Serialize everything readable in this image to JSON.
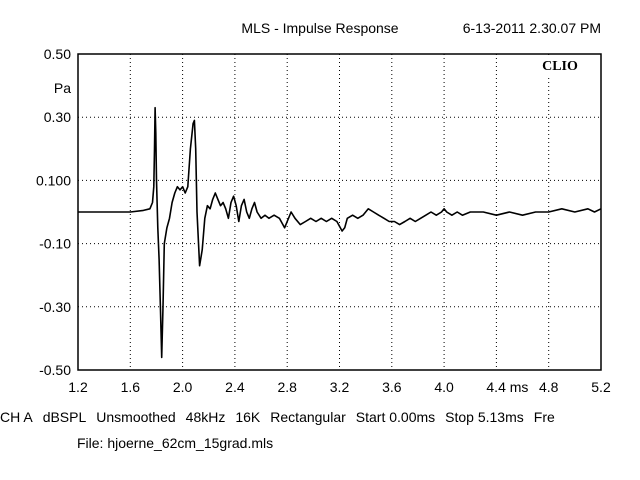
{
  "header": {
    "title": "MLS - Impulse Response",
    "timestamp": "6-13-2011 2.30.07 PM"
  },
  "brand": "CLIO",
  "footer": {
    "settings": [
      "CH A",
      "dBSPL",
      "Unsmoothed",
      "48kHz",
      "16K",
      "Rectangular",
      "Start 0.00ms",
      "Stop 5.13ms",
      "Fre"
    ],
    "file": "File: hjoerne_62cm_15grad.mls"
  },
  "chart_data": {
    "type": "line",
    "title": "MLS - Impulse Response",
    "ylabel": "Pa",
    "xlim": [
      1.2,
      5.2
    ],
    "ylim": [
      -0.5,
      0.5
    ],
    "grid": true,
    "x_ticks": [
      {
        "value": 1.2,
        "label": "1.2"
      },
      {
        "value": 1.6,
        "label": "1.6"
      },
      {
        "value": 2.0,
        "label": "2.0"
      },
      {
        "value": 2.4,
        "label": "2.4"
      },
      {
        "value": 2.8,
        "label": "2.8"
      },
      {
        "value": 3.2,
        "label": "3.2"
      },
      {
        "value": 3.6,
        "label": "3.6"
      },
      {
        "value": 4.0,
        "label": "4.0"
      },
      {
        "value": 4.4,
        "label": "4.4 ms"
      },
      {
        "value": 4.8,
        "label": "4.8"
      },
      {
        "value": 5.2,
        "label": "5.2"
      }
    ],
    "y_ticks": [
      {
        "value": 0.5,
        "label": "0.50"
      },
      {
        "value": 0.3,
        "label": "0.30"
      },
      {
        "value": 0.1,
        "label": "0.100"
      },
      {
        "value": -0.1,
        "label": "-0.10"
      },
      {
        "value": -0.3,
        "label": "-0.30"
      },
      {
        "value": -0.5,
        "label": "-0.50"
      }
    ],
    "series": [
      {
        "color": "#000000",
        "points": [
          [
            1.2,
            0.0
          ],
          [
            1.3,
            0.0
          ],
          [
            1.4,
            0.0
          ],
          [
            1.5,
            0.0
          ],
          [
            1.6,
            0.0
          ],
          [
            1.7,
            0.005
          ],
          [
            1.75,
            0.01
          ],
          [
            1.77,
            0.03
          ],
          [
            1.78,
            0.08
          ],
          [
            1.785,
            0.2
          ],
          [
            1.79,
            0.33
          ],
          [
            1.795,
            0.25
          ],
          [
            1.8,
            0.1
          ],
          [
            1.81,
            -0.05
          ],
          [
            1.82,
            -0.15
          ],
          [
            1.83,
            -0.3
          ],
          [
            1.84,
            -0.46
          ],
          [
            1.85,
            -0.3
          ],
          [
            1.86,
            -0.1
          ],
          [
            1.88,
            -0.05
          ],
          [
            1.9,
            -0.02
          ],
          [
            1.92,
            0.03
          ],
          [
            1.94,
            0.06
          ],
          [
            1.96,
            0.08
          ],
          [
            1.98,
            0.07
          ],
          [
            2.0,
            0.08
          ],
          [
            2.02,
            0.06
          ],
          [
            2.04,
            0.08
          ],
          [
            2.06,
            0.2
          ],
          [
            2.08,
            0.28
          ],
          [
            2.09,
            0.29
          ],
          [
            2.1,
            0.2
          ],
          [
            2.11,
            0.0
          ],
          [
            2.13,
            -0.17
          ],
          [
            2.15,
            -0.12
          ],
          [
            2.17,
            -0.02
          ],
          [
            2.19,
            0.02
          ],
          [
            2.21,
            0.01
          ],
          [
            2.23,
            0.04
          ],
          [
            2.25,
            0.06
          ],
          [
            2.27,
            0.04
          ],
          [
            2.29,
            0.02
          ],
          [
            2.31,
            0.03
          ],
          [
            2.33,
            0.01
          ],
          [
            2.35,
            -0.02
          ],
          [
            2.37,
            0.03
          ],
          [
            2.39,
            0.05
          ],
          [
            2.41,
            0.02
          ],
          [
            2.43,
            -0.03
          ],
          [
            2.45,
            0.02
          ],
          [
            2.47,
            0.04
          ],
          [
            2.49,
            0.0
          ],
          [
            2.51,
            -0.02
          ],
          [
            2.53,
            0.01
          ],
          [
            2.55,
            0.03
          ],
          [
            2.57,
            0.0
          ],
          [
            2.6,
            -0.02
          ],
          [
            2.63,
            -0.01
          ],
          [
            2.66,
            -0.02
          ],
          [
            2.7,
            -0.01
          ],
          [
            2.74,
            -0.02
          ],
          [
            2.78,
            -0.05
          ],
          [
            2.8,
            -0.03
          ],
          [
            2.83,
            0.0
          ],
          [
            2.86,
            -0.02
          ],
          [
            2.9,
            -0.04
          ],
          [
            2.94,
            -0.03
          ],
          [
            2.98,
            -0.02
          ],
          [
            3.02,
            -0.03
          ],
          [
            3.06,
            -0.02
          ],
          [
            3.1,
            -0.03
          ],
          [
            3.14,
            -0.02
          ],
          [
            3.18,
            -0.03
          ],
          [
            3.22,
            -0.06
          ],
          [
            3.24,
            -0.05
          ],
          [
            3.26,
            -0.02
          ],
          [
            3.3,
            -0.01
          ],
          [
            3.34,
            -0.02
          ],
          [
            3.38,
            -0.01
          ],
          [
            3.42,
            0.01
          ],
          [
            3.46,
            0.0
          ],
          [
            3.5,
            -0.01
          ],
          [
            3.54,
            -0.02
          ],
          [
            3.58,
            -0.03
          ],
          [
            3.62,
            -0.03
          ],
          [
            3.66,
            -0.04
          ],
          [
            3.7,
            -0.03
          ],
          [
            3.74,
            -0.02
          ],
          [
            3.78,
            -0.03
          ],
          [
            3.82,
            -0.02
          ],
          [
            3.86,
            -0.01
          ],
          [
            3.9,
            0.0
          ],
          [
            3.94,
            -0.01
          ],
          [
            3.98,
            0.0
          ],
          [
            4.0,
            0.01
          ],
          [
            4.02,
            0.0
          ],
          [
            4.06,
            -0.01
          ],
          [
            4.1,
            0.0
          ],
          [
            4.14,
            -0.01
          ],
          [
            4.2,
            0.0
          ],
          [
            4.3,
            0.0
          ],
          [
            4.4,
            -0.01
          ],
          [
            4.5,
            0.0
          ],
          [
            4.6,
            -0.01
          ],
          [
            4.7,
            0.0
          ],
          [
            4.8,
            0.0
          ],
          [
            4.9,
            0.01
          ],
          [
            5.0,
            0.0
          ],
          [
            5.1,
            0.01
          ],
          [
            5.15,
            0.0
          ],
          [
            5.2,
            0.01
          ]
        ]
      }
    ]
  }
}
